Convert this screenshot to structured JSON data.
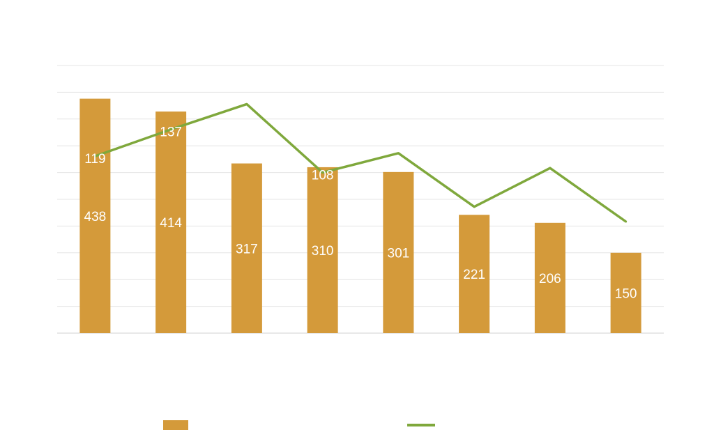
{
  "chart_data": {
    "type": "bar",
    "title": "",
    "categories": [
      "",
      "",
      "",
      "",
      "",
      "",
      "",
      ""
    ],
    "ylim": [
      0,
      500
    ],
    "y2lim": [
      0,
      180
    ],
    "grid": true,
    "legend": "bottom",
    "series": [
      {
        "type": "bar",
        "axis": "left",
        "color": "#d49a3a",
        "values": [
          438,
          414,
          317,
          310,
          301,
          221,
          206,
          150
        ],
        "labels": [
          "438",
          "414",
          "317",
          "310",
          "301",
          "221",
          "206",
          "150"
        ]
      },
      {
        "type": "line",
        "axis": "right",
        "color": "#7fa83c",
        "values": [
          119,
          137,
          154,
          108,
          121,
          85,
          111,
          75
        ],
        "labels": [
          "119",
          "137",
          "",
          "108",
          "",
          "",
          "",
          ""
        ]
      }
    ]
  }
}
